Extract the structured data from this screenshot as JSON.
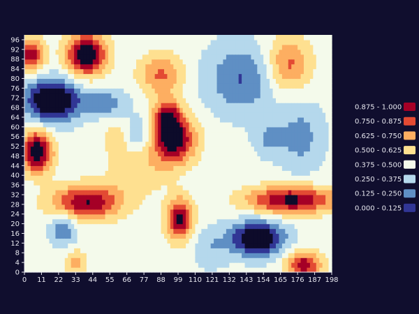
{
  "chart_data": {
    "type": "heatmap",
    "title": "",
    "xlabel": "",
    "ylabel": "",
    "xlim": [
      0,
      198
    ],
    "ylim": [
      0,
      98
    ],
    "x_ticks": [
      "0",
      "11",
      "22",
      "33",
      "44",
      "55",
      "66",
      "77",
      "88",
      "99",
      "110",
      "121",
      "132",
      "143",
      "154",
      "165",
      "176",
      "187",
      "198"
    ],
    "y_ticks": [
      "0",
      "4",
      "8",
      "12",
      "16",
      "20",
      "24",
      "28",
      "32",
      "36",
      "40",
      "44",
      "48",
      "52",
      "56",
      "60",
      "64",
      "68",
      "72",
      "76",
      "80",
      "84",
      "88",
      "92",
      "96"
    ],
    "legend_placement": "right",
    "bins": [
      {
        "range": "0.875 - 1.000",
        "color": "#a50026"
      },
      {
        "range": "0.750 - 0.875",
        "color": "#e34a33"
      },
      {
        "range": "0.625 - 0.750",
        "color": "#fdae61"
      },
      {
        "range": "0.500 - 0.625",
        "color": "#fee090"
      },
      {
        "range": "0.375 - 0.500",
        "color": "#f4faeb"
      },
      {
        "range": "0.250 - 0.375",
        "color": "#b5d8ec"
      },
      {
        "range": "0.125 - 0.250",
        "color": "#5f8fc4"
      },
      {
        "range": "0.000 - 0.125",
        "color": "#313695"
      }
    ],
    "out_of_range_color": "#0d0b2a",
    "field": {
      "baseline": 0.42,
      "blobs": [
        {
          "x": 18,
          "y": 71,
          "sx": 12,
          "sy": 6,
          "a": -0.68
        },
        {
          "x": 8,
          "y": 50,
          "sx": 7,
          "sy": 6,
          "a": 0.72
        },
        {
          "x": 4,
          "y": 90,
          "sx": 6,
          "sy": 5,
          "a": 0.55
        },
        {
          "x": 40,
          "y": 90,
          "sx": 9,
          "sy": 6,
          "a": 0.72
        },
        {
          "x": 52,
          "y": 70,
          "sx": 10,
          "sy": 4,
          "a": -0.25
        },
        {
          "x": 40,
          "y": 29,
          "sx": 16,
          "sy": 5,
          "a": 0.58
        },
        {
          "x": 25,
          "y": 18,
          "sx": 6,
          "sy": 5,
          "a": -0.28
        },
        {
          "x": 33,
          "y": 4,
          "sx": 5,
          "sy": 4,
          "a": 0.25
        },
        {
          "x": 96,
          "y": 55,
          "sx": 10,
          "sy": 7,
          "a": 0.68
        },
        {
          "x": 92,
          "y": 65,
          "sx": 6,
          "sy": 5,
          "a": 0.45
        },
        {
          "x": 88,
          "y": 82,
          "sx": 10,
          "sy": 6,
          "a": 0.35
        },
        {
          "x": 73,
          "y": 42,
          "sx": 14,
          "sy": 7,
          "a": 0.18
        },
        {
          "x": 73,
          "y": 57,
          "sx": 6,
          "sy": 5,
          "a": -0.22
        },
        {
          "x": 100,
          "y": 22,
          "sx": 6,
          "sy": 6,
          "a": 0.62
        },
        {
          "x": 150,
          "y": 14,
          "sx": 12,
          "sy": 5,
          "a": -0.62
        },
        {
          "x": 172,
          "y": 30,
          "sx": 20,
          "sy": 4,
          "a": 0.62
        },
        {
          "x": 180,
          "y": 3,
          "sx": 8,
          "sy": 4,
          "a": 0.55
        },
        {
          "x": 140,
          "y": 80,
          "sx": 16,
          "sy": 10,
          "a": -0.3
        },
        {
          "x": 170,
          "y": 86,
          "sx": 10,
          "sy": 8,
          "a": 0.38
        },
        {
          "x": 178,
          "y": 56,
          "sx": 10,
          "sy": 10,
          "a": -0.22
        },
        {
          "x": 158,
          "y": 55,
          "sx": 7,
          "sy": 5,
          "a": -0.18
        },
        {
          "x": 120,
          "y": 10,
          "sx": 8,
          "sy": 6,
          "a": -0.15
        },
        {
          "x": 60,
          "y": 56,
          "sx": 7,
          "sy": 5,
          "a": 0.15
        }
      ]
    }
  }
}
